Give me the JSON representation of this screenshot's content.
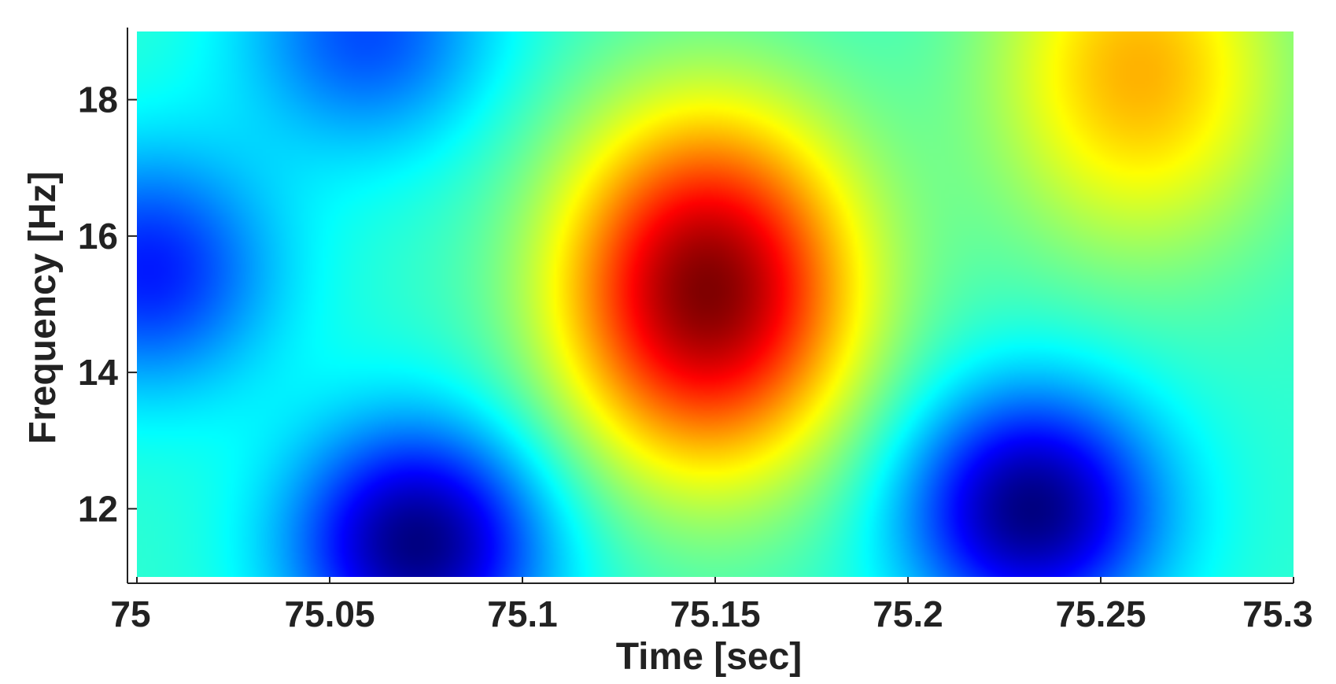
{
  "chart_data": {
    "type": "heatmap",
    "title": "",
    "xlabel": "Time [sec]",
    "ylabel": "Frequency [Hz]",
    "xlim": [
      75.0,
      75.3
    ],
    "ylim": [
      11.0,
      19.0
    ],
    "xticks": [
      75.0,
      75.05,
      75.1,
      75.15,
      75.2,
      75.25,
      75.3
    ],
    "xtick_labels": [
      "75",
      "75.05",
      "75.1",
      "75.15",
      "75.2",
      "75.25",
      "75.3"
    ],
    "yticks": [
      12,
      14,
      16,
      18
    ],
    "ytick_labels": [
      "12",
      "14",
      "16",
      "18"
    ],
    "colormap": "jet",
    "colorbar": false,
    "grid": false,
    "intensity_range": [
      0,
      1
    ],
    "features": [
      {
        "kind": "maximum",
        "time": 75.148,
        "frequency": 15.2,
        "level": 1.0
      },
      {
        "kind": "maximum",
        "time": 75.26,
        "frequency": 18.4,
        "level": 0.7
      },
      {
        "kind": "minimum",
        "time": 75.073,
        "frequency": 11.5,
        "level": 0.0
      },
      {
        "kind": "minimum",
        "time": 75.232,
        "frequency": 12.0,
        "level": 0.0
      },
      {
        "kind": "minimum",
        "time": 75.003,
        "frequency": 15.5,
        "level": 0.15
      },
      {
        "kind": "minimum",
        "time": 75.06,
        "frequency": 19.0,
        "level": 0.2
      }
    ]
  }
}
